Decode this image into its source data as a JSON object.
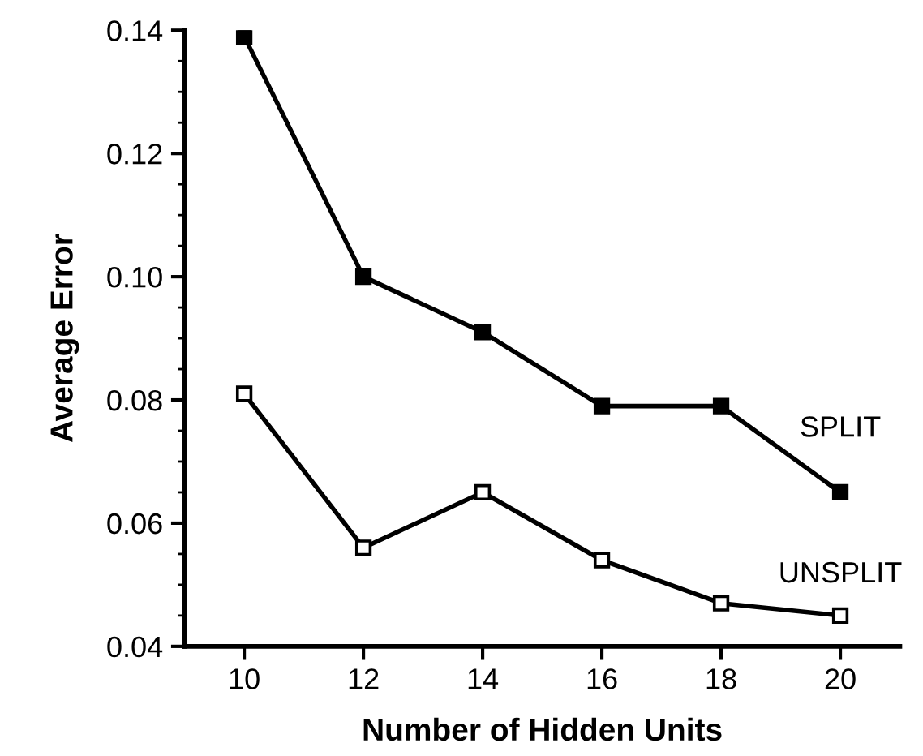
{
  "chart_data": {
    "type": "line",
    "xlabel": "Number of Hidden Units",
    "ylabel": "Average Error",
    "x": [
      10,
      12,
      14,
      16,
      18,
      20
    ],
    "series": [
      {
        "name": "SPLIT",
        "color": "#000000",
        "values": [
          0.139,
          0.1,
          0.091,
          0.079,
          0.079,
          0.065
        ]
      },
      {
        "name": "UNSPLIT",
        "color": "#000000",
        "values": [
          0.081,
          0.056,
          0.065,
          0.054,
          0.047,
          0.045
        ]
      }
    ],
    "xlim": [
      9,
      21
    ],
    "xticks": [
      10,
      12,
      14,
      16,
      18,
      20
    ],
    "ylim": [
      0.04,
      0.14
    ],
    "yticks": [
      {
        "value": 0.04,
        "label": "0.04"
      },
      {
        "value": 0.06,
        "label": "0.06"
      },
      {
        "value": 0.08,
        "label": "0.08"
      },
      {
        "value": 0.1,
        "label": "0.10"
      },
      {
        "value": 0.12,
        "label": "0.12"
      },
      {
        "value": 0.14,
        "label": "0.14"
      }
    ],
    "grid": false,
    "legend": false,
    "marker": "square",
    "line_style": "solid"
  }
}
